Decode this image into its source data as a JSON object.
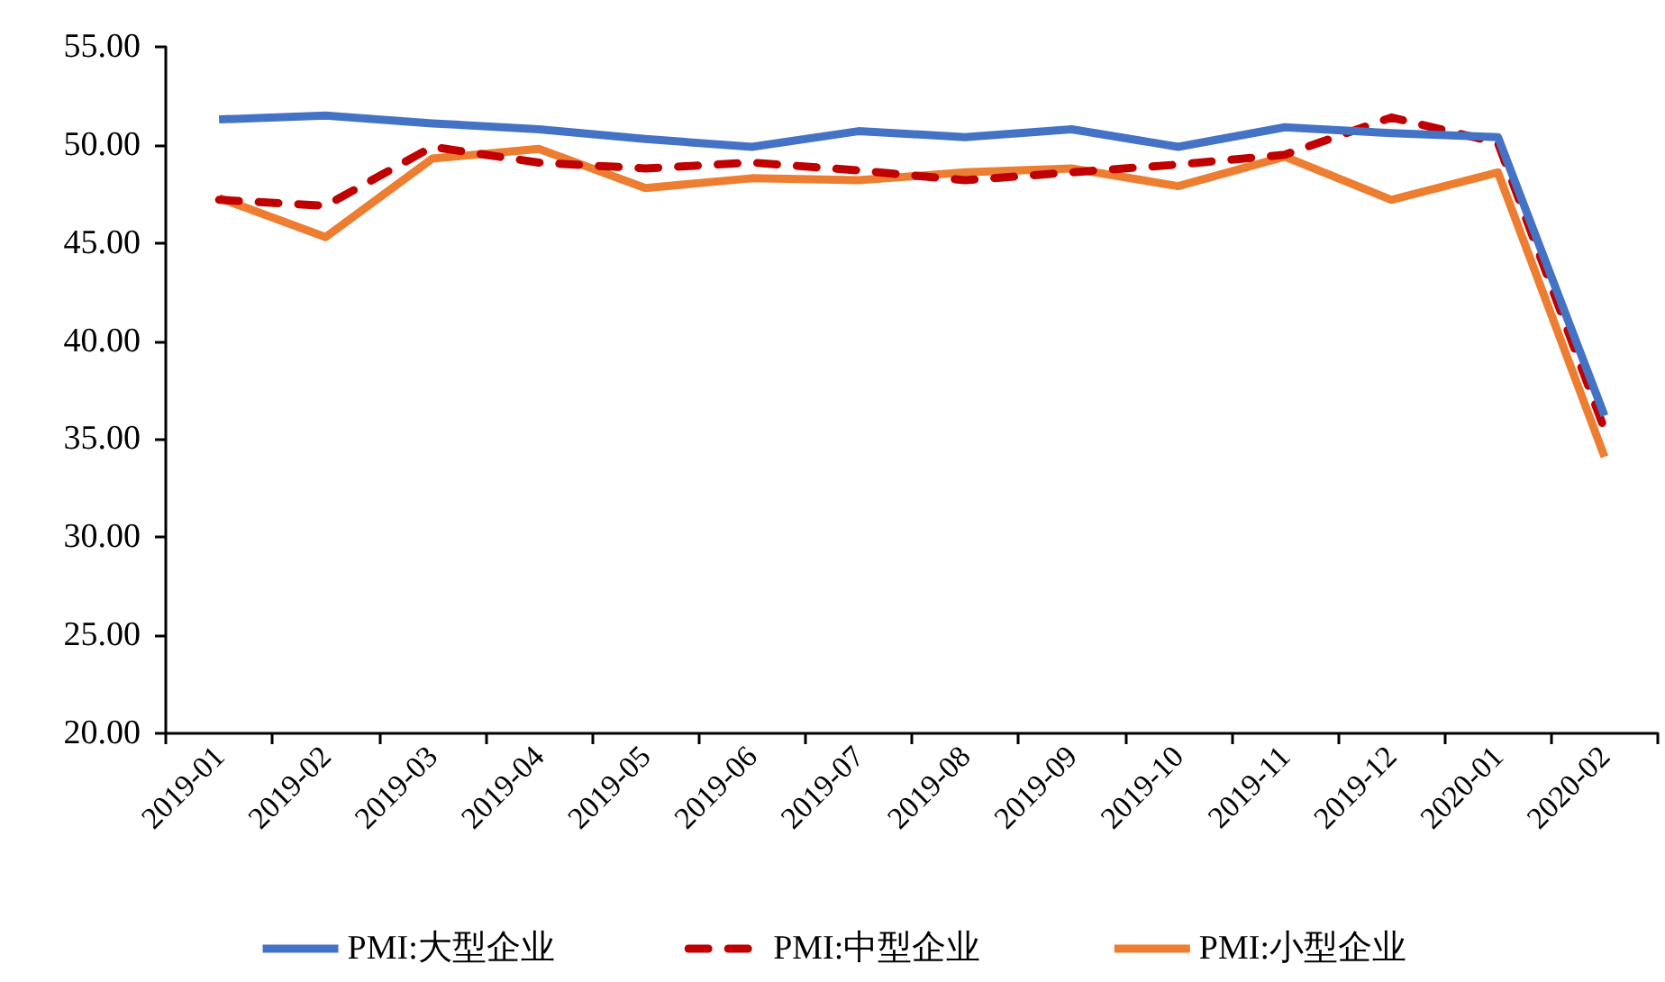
{
  "chart_data": {
    "type": "line",
    "categories": [
      "2019-01",
      "2019-02",
      "2019-03",
      "2019-04",
      "2019-05",
      "2019-06",
      "2019-07",
      "2019-08",
      "2019-09",
      "2019-10",
      "2019-11",
      "2019-12",
      "2020-01",
      "2020-02"
    ],
    "series": [
      {
        "name": "PMI:大型企业",
        "color": "#4472c4",
        "line_style": "solid",
        "values": [
          51.3,
          51.5,
          51.1,
          50.8,
          50.3,
          49.9,
          50.7,
          50.4,
          50.8,
          49.9,
          50.9,
          50.6,
          50.4,
          36.2
        ]
      },
      {
        "name": "PMI:中型企业",
        "color": "#c00000",
        "line_style": "dashed",
        "values": [
          47.2,
          46.9,
          49.9,
          49.1,
          48.8,
          49.1,
          48.7,
          48.2,
          48.6,
          49.0,
          49.5,
          51.4,
          50.1,
          35.5
        ]
      },
      {
        "name": "PMI:小型企业",
        "color": "#ed7d31",
        "line_style": "solid",
        "values": [
          47.3,
          45.3,
          49.3,
          49.8,
          47.8,
          48.3,
          48.2,
          48.6,
          48.8,
          47.9,
          49.4,
          47.2,
          48.6,
          34.1
        ]
      }
    ],
    "ylim": [
      20,
      55
    ],
    "yticks": [
      {
        "value": 20,
        "label": "20.00"
      },
      {
        "value": 25,
        "label": "25.00"
      },
      {
        "value": 30,
        "label": "30.00"
      },
      {
        "value": 35,
        "label": "35.00"
      },
      {
        "value": 40,
        "label": "40.00"
      },
      {
        "value": 45,
        "label": "45.00"
      },
      {
        "value": 50,
        "label": "50.00"
      },
      {
        "value": 55,
        "label": "55.00"
      }
    ],
    "legend": "bottom",
    "marker": "none",
    "grid": false
  }
}
